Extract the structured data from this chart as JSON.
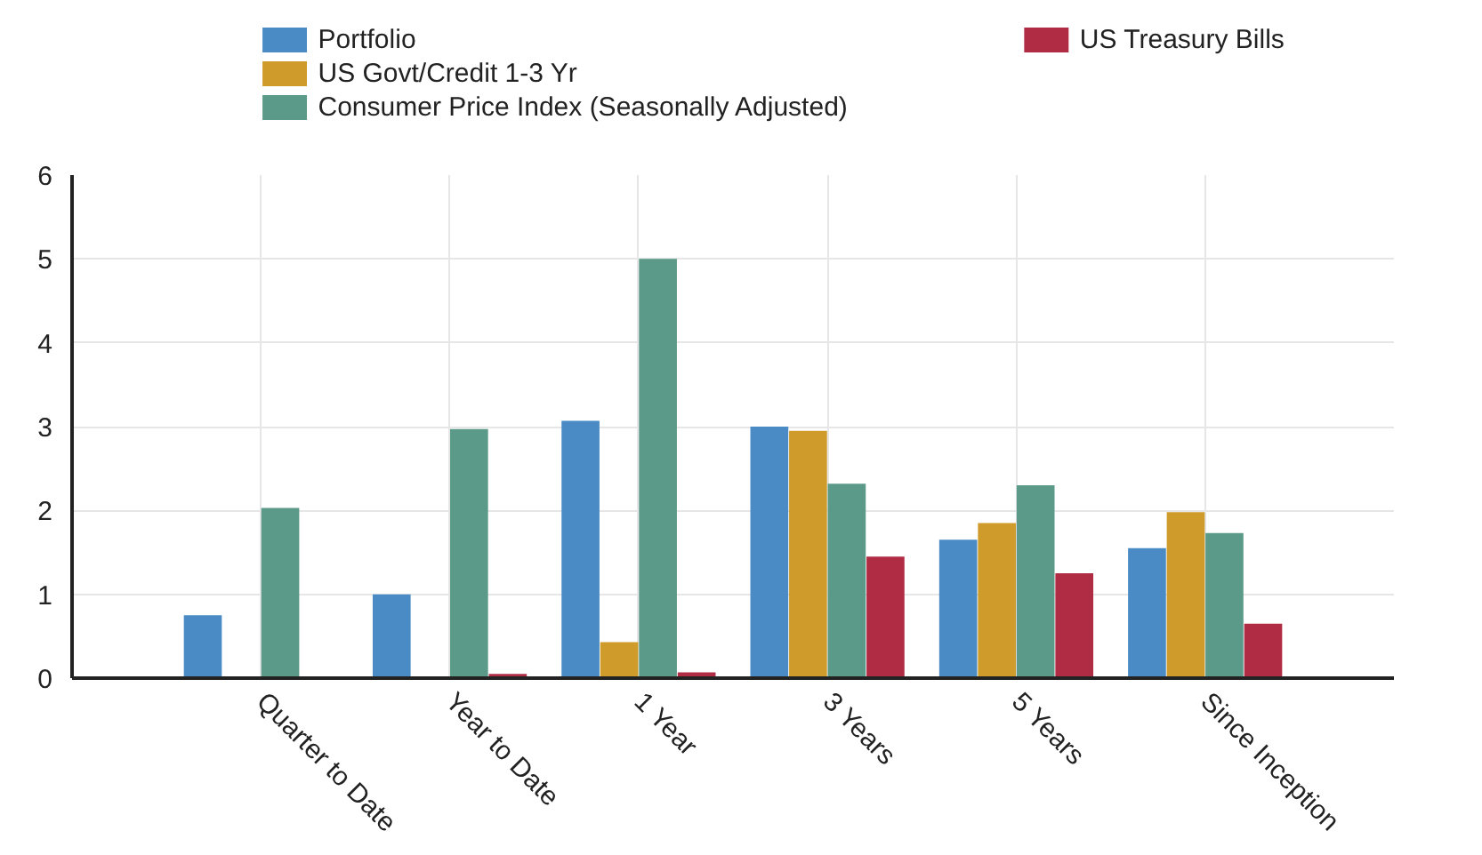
{
  "chart_data": {
    "type": "bar",
    "categories": [
      "Quarter to Date",
      "Year to Date",
      "1 Year",
      "3 Years",
      "5 Years",
      "Since Inception"
    ],
    "series": [
      {
        "name": "Portfolio",
        "color": "#4a8bc6",
        "values": [
          0.75,
          1.0,
          3.07,
          3.0,
          1.65,
          1.55
        ]
      },
      {
        "name": "US Govt/Credit 1-3 Yr",
        "color": "#cf9b2b",
        "values": [
          0,
          0,
          0.43,
          2.95,
          1.85,
          1.98
        ]
      },
      {
        "name": "Consumer Price Index (Seasonally Adjusted)",
        "color": "#5b9a89",
        "values": [
          2.03,
          2.97,
          5.0,
          2.32,
          2.3,
          1.73
        ]
      },
      {
        "name": "US Treasury Bills",
        "color": "#b02c45",
        "values": [
          0,
          0.05,
          0.07,
          1.45,
          1.25,
          0.65
        ]
      }
    ],
    "ylim": [
      0,
      6
    ],
    "yticks": [
      0,
      1,
      2,
      3,
      4,
      5,
      6
    ],
    "grid": true,
    "legend": "top"
  }
}
